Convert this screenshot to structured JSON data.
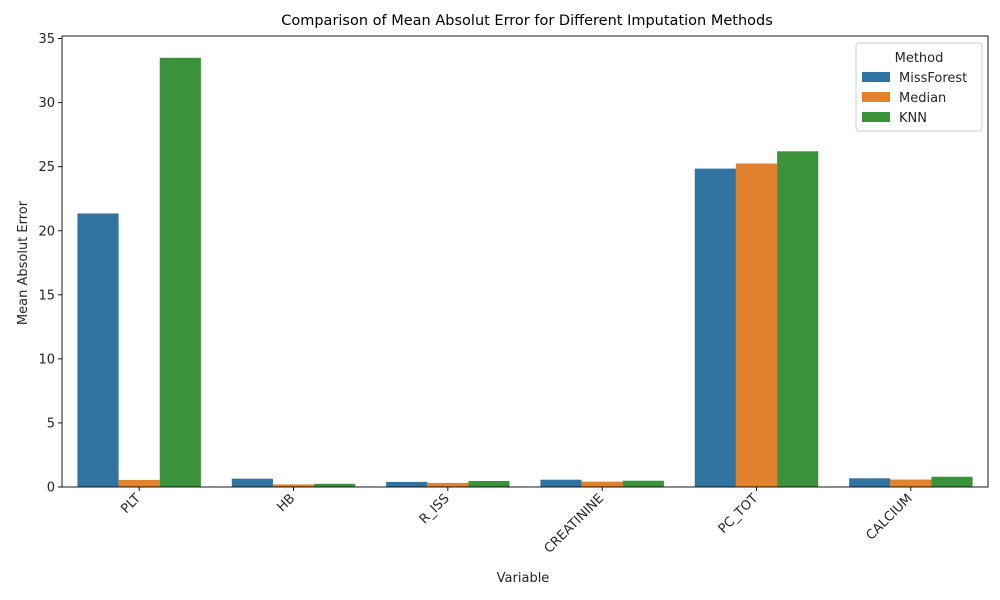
{
  "chart_data": {
    "type": "bar",
    "title": "Comparison of Mean Absolut Error for Different Imputation Methods",
    "xlabel": "Variable",
    "ylabel": "Mean Absolut Error",
    "categories": [
      "PLT",
      "HB",
      "R_ISS",
      "CREATININE",
      "PC_TOT",
      "CALCIUM"
    ],
    "series": [
      {
        "name": "MissForest",
        "color": "#3274a1",
        "values": [
          21.35,
          0.65,
          0.4,
          0.57,
          24.85,
          0.68
        ]
      },
      {
        "name": "Median",
        "color": "#e1812c",
        "values": [
          0.55,
          0.2,
          0.32,
          0.42,
          25.25,
          0.58
        ]
      },
      {
        "name": "KNN",
        "color": "#3a923a",
        "values": [
          33.5,
          0.25,
          0.47,
          0.49,
          26.2,
          0.8
        ]
      }
    ],
    "ylim": [
      0,
      35.2
    ],
    "yticks": [
      0,
      5,
      10,
      15,
      20,
      25,
      30,
      35
    ],
    "legend_title": "Method",
    "legend_position": "top-right",
    "grid": false
  }
}
